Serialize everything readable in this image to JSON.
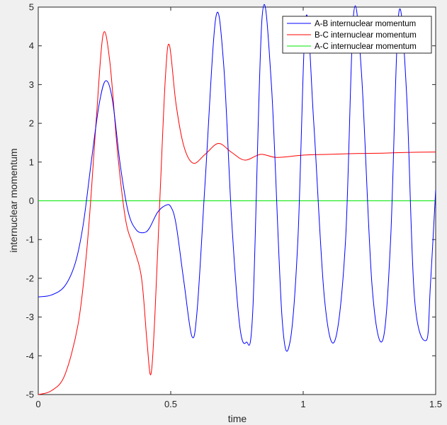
{
  "chart_data": {
    "type": "line",
    "title": "",
    "xlabel": "time",
    "ylabel": "internuclear momentum",
    "xlim": [
      0,
      1.5
    ],
    "ylim": [
      -5,
      5
    ],
    "xticks": [
      0,
      0.5,
      1,
      1.5
    ],
    "xtick_labels": [
      "0",
      "0.5",
      "1",
      "1.5"
    ],
    "yticks": [
      -5,
      -4,
      -3,
      -2,
      -1,
      0,
      1,
      2,
      3,
      4,
      5
    ],
    "ytick_labels": [
      "-5",
      "-4",
      "-3",
      "-2",
      "-1",
      "0",
      "1",
      "2",
      "3",
      "4",
      "5"
    ],
    "grid": false,
    "legend_position": "top-right",
    "series": [
      {
        "name": "A-B internuclear momentum",
        "color": "#0000ff",
        "x": [
          0,
          0.05,
          0.1,
          0.14,
          0.17,
          0.2,
          0.23,
          0.255,
          0.28,
          0.31,
          0.34,
          0.37,
          0.4,
          0.42,
          0.45,
          0.48,
          0.5,
          0.52,
          0.55,
          0.58,
          0.6,
          0.63,
          0.67,
          0.7,
          0.73,
          0.76,
          0.785,
          0.81,
          0.845,
          0.88,
          0.92,
          0.95,
          0.98,
          1.01,
          1.04,
          1.08,
          1.12,
          1.16,
          1.19,
          1.22,
          1.26,
          1.3,
          1.33,
          1.36,
          1.39,
          1.42,
          1.465,
          1.48,
          1.5
        ],
        "y": [
          -2.48,
          -2.43,
          -2.2,
          -1.6,
          -0.6,
          1.0,
          2.5,
          3.1,
          2.6,
          0.9,
          -0.3,
          -0.75,
          -0.82,
          -0.7,
          -0.3,
          -0.12,
          -0.15,
          -0.6,
          -2.1,
          -3.5,
          -2.8,
          0.5,
          4.72,
          3.5,
          -0.5,
          -3.2,
          -3.65,
          -2.8,
          4.75,
          3.0,
          -3.0,
          -3.65,
          -1.0,
          4.72,
          2.0,
          -2.5,
          -3.6,
          -1.0,
          4.8,
          3.3,
          -2.2,
          -3.6,
          -1.0,
          4.8,
          2.8,
          -2.5,
          -3.6,
          -2.2,
          0.28
        ]
      },
      {
        "name": "B-C internuclear momentum",
        "color": "#ff0000",
        "x": [
          0,
          0.05,
          0.1,
          0.15,
          0.18,
          0.2,
          0.22,
          0.245,
          0.27,
          0.3,
          0.33,
          0.36,
          0.39,
          0.41,
          0.425,
          0.44,
          0.46,
          0.48,
          0.495,
          0.52,
          0.55,
          0.585,
          0.63,
          0.68,
          0.73,
          0.78,
          0.84,
          0.9,
          1.0,
          1.1,
          1.2,
          1.3,
          1.4,
          1.5
        ],
        "y": [
          -5.0,
          -4.9,
          -4.5,
          -3.2,
          -1.5,
          0.2,
          2.2,
          4.3,
          3.6,
          1.2,
          -0.5,
          -1.2,
          -2.0,
          -3.6,
          -4.48,
          -3.0,
          0.2,
          3.2,
          4.02,
          2.5,
          1.4,
          0.97,
          1.2,
          1.48,
          1.25,
          1.05,
          1.2,
          1.12,
          1.18,
          1.2,
          1.22,
          1.23,
          1.25,
          1.26
        ]
      },
      {
        "name": "A-C internuclear momentum",
        "color": "#00e600",
        "x": [
          0,
          1.5
        ],
        "y": [
          0,
          0
        ]
      }
    ]
  }
}
